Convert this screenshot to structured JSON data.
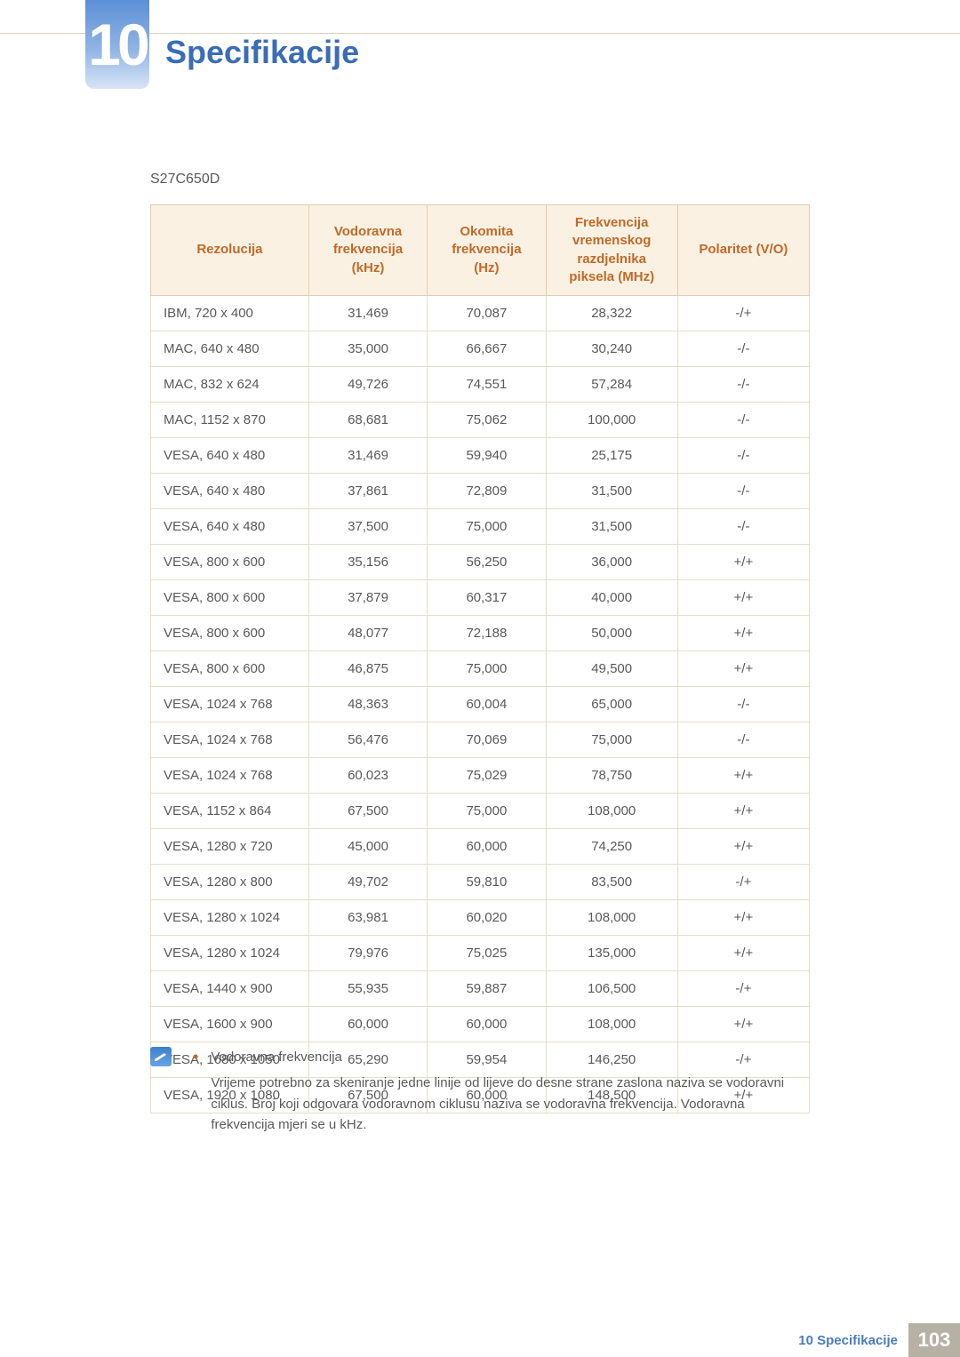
{
  "chapter": {
    "number": "10",
    "title": "Specifikacije"
  },
  "model": "S27C650D",
  "table": {
    "headers": {
      "c1": "Rezolucija",
      "c2_l1": "Vodoravna",
      "c2_l2": "frekvencija",
      "c2_l3": "(kHz)",
      "c3_l1": "Okomita",
      "c3_l2": "frekvencija",
      "c3_l3": "(Hz)",
      "c4_l1": "Frekvencija",
      "c4_l2": "vremenskog",
      "c4_l3": "razdjelnika",
      "c4_l4": "piksela (MHz)",
      "c5": "Polaritet (V/O)"
    },
    "col_widths_pct": [
      24,
      18,
      18,
      20,
      20
    ],
    "header_bg": "#fbf1e2",
    "header_color": "#c06a2a",
    "border_color": "#e8dccb",
    "rows": [
      [
        "IBM, 720 x 400",
        "31,469",
        "70,087",
        "28,322",
        "-/+"
      ],
      [
        "MAC, 640 x 480",
        "35,000",
        "66,667",
        "30,240",
        "-/-"
      ],
      [
        "MAC, 832 x 624",
        "49,726",
        "74,551",
        "57,284",
        "-/-"
      ],
      [
        "MAC, 1152 x 870",
        "68,681",
        "75,062",
        "100,000",
        "-/-"
      ],
      [
        "VESA, 640 x 480",
        "31,469",
        "59,940",
        "25,175",
        "-/-"
      ],
      [
        "VESA, 640 x 480",
        "37,861",
        "72,809",
        "31,500",
        "-/-"
      ],
      [
        "VESA, 640 x 480",
        "37,500",
        "75,000",
        "31,500",
        "-/-"
      ],
      [
        "VESA, 800 x 600",
        "35,156",
        "56,250",
        "36,000",
        "+/+"
      ],
      [
        "VESA, 800 x 600",
        "37,879",
        "60,317",
        "40,000",
        "+/+"
      ],
      [
        "VESA, 800 x 600",
        "48,077",
        "72,188",
        "50,000",
        "+/+"
      ],
      [
        "VESA, 800 x 600",
        "46,875",
        "75,000",
        "49,500",
        "+/+"
      ],
      [
        "VESA, 1024 x 768",
        "48,363",
        "60,004",
        "65,000",
        "-/-"
      ],
      [
        "VESA, 1024 x 768",
        "56,476",
        "70,069",
        "75,000",
        "-/-"
      ],
      [
        "VESA, 1024 x 768",
        "60,023",
        "75,029",
        "78,750",
        "+/+"
      ],
      [
        "VESA, 1152 x 864",
        "67,500",
        "75,000",
        "108,000",
        "+/+"
      ],
      [
        "VESA, 1280 x 720",
        "45,000",
        "60,000",
        "74,250",
        "+/+"
      ],
      [
        "VESA, 1280 x 800",
        "49,702",
        "59,810",
        "83,500",
        "-/+"
      ],
      [
        "VESA, 1280 x 1024",
        "63,981",
        "60,020",
        "108,000",
        "+/+"
      ],
      [
        "VESA, 1280 x 1024",
        "79,976",
        "75,025",
        "135,000",
        "+/+"
      ],
      [
        "VESA, 1440 x 900",
        "55,935",
        "59,887",
        "106,500",
        "-/+"
      ],
      [
        "VESA, 1600 x 900",
        "60,000",
        "60,000",
        "108,000",
        "+/+"
      ],
      [
        "VESA, 1680 x 1050",
        "65,290",
        "59,954",
        "146,250",
        "-/+"
      ],
      [
        "VESA, 1920 x 1080",
        "67,500",
        "60,000",
        "148,500",
        "+/+"
      ]
    ]
  },
  "note": {
    "heading": "Vodoravna frekvencija",
    "body": "Vrijeme potrebno za skeniranje jedne linije od lijeve do desne strane zaslona naziva se vodoravni ciklus. Broj koji odgovara vodoravnom ciklusu naziva se vodoravna frekvencija. Vodoravna frekvencija mjeri se u kHz."
  },
  "footer": {
    "label": "10 Specifikacije",
    "page": "103"
  },
  "colors": {
    "brand_blue": "#3b6db5",
    "accent_orange": "#c06a2a",
    "footer_bg": "#b7b0a4"
  }
}
